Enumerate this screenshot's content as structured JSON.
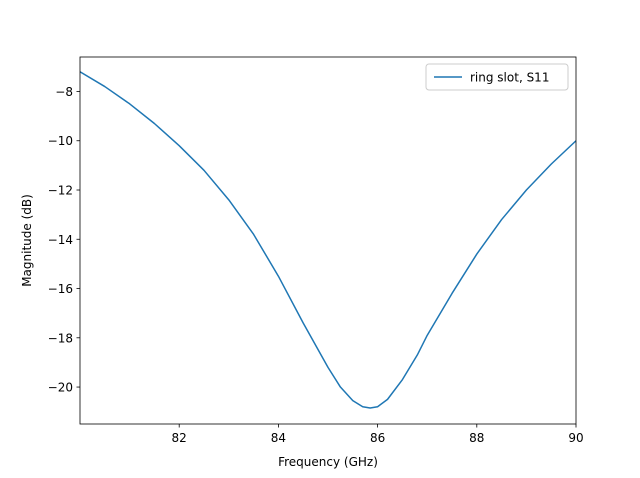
{
  "chart_data": {
    "type": "line",
    "xlabel": "Frequency (GHz)",
    "ylabel": "Magnitude (dB)",
    "xlim": [
      80.0,
      90.0
    ],
    "ylim": [
      -21.5,
      -6.6
    ],
    "xticks": [
      82,
      84,
      86,
      88,
      90
    ],
    "yticks": [
      -8,
      -10,
      -12,
      -14,
      -16,
      -18,
      -20
    ],
    "grid": false,
    "legend_position": "top-right",
    "series": [
      {
        "name": "ring slot, S11",
        "color": "#1f77b4",
        "x": [
          80.0,
          80.5,
          81.0,
          81.5,
          82.0,
          82.5,
          83.0,
          83.5,
          84.0,
          84.5,
          85.0,
          85.25,
          85.5,
          85.7,
          85.85,
          86.0,
          86.2,
          86.5,
          86.8,
          87.0,
          87.5,
          88.0,
          88.5,
          89.0,
          89.5,
          90.0
        ],
        "y": [
          -7.2,
          -7.8,
          -8.5,
          -9.3,
          -10.2,
          -11.2,
          -12.4,
          -13.8,
          -15.5,
          -17.4,
          -19.2,
          -20.0,
          -20.55,
          -20.8,
          -20.85,
          -20.8,
          -20.5,
          -19.7,
          -18.7,
          -17.9,
          -16.2,
          -14.6,
          -13.2,
          -12.0,
          -10.95,
          -10.0
        ]
      }
    ]
  }
}
